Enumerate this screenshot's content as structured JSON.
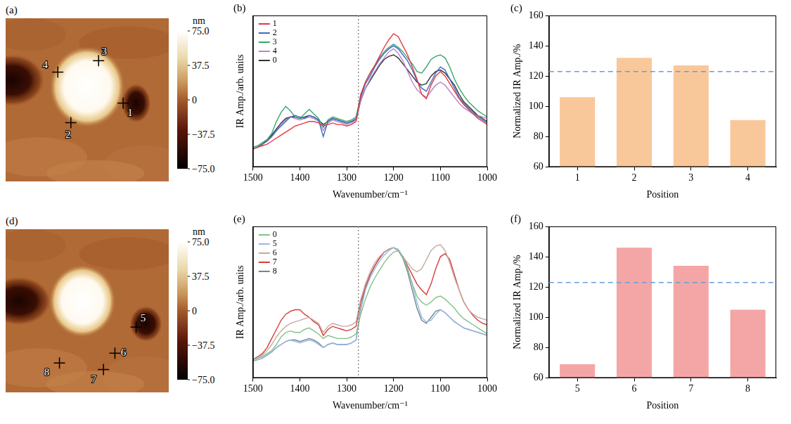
{
  "chart_data": [
    {
      "type": "line",
      "panel": "(b)",
      "xlabel": "Wavenumber/cm⁻¹",
      "ylabel": "IR Amp./arb. units",
      "x": [
        1500,
        1490,
        1480,
        1470,
        1460,
        1450,
        1440,
        1430,
        1420,
        1410,
        1400,
        1390,
        1380,
        1370,
        1360,
        1350,
        1340,
        1330,
        1320,
        1310,
        1300,
        1290,
        1280,
        1270,
        1260,
        1250,
        1240,
        1230,
        1220,
        1210,
        1200,
        1190,
        1180,
        1170,
        1160,
        1150,
        1140,
        1130,
        1120,
        1110,
        1100,
        1090,
        1080,
        1070,
        1060,
        1050,
        1040,
        1030,
        1020,
        1010,
        1000
      ],
      "xlim": [
        1500,
        1000
      ],
      "xticks": [
        1500,
        1400,
        1300,
        1200,
        1100,
        1000
      ],
      "ylim": [
        0,
        1
      ],
      "tick_labels": "x",
      "grid": false,
      "legend": "upper left",
      "reference_line": 1275,
      "series": [
        {
          "name": "1",
          "color": "#e8383d",
          "values": [
            0.12,
            0.13,
            0.14,
            0.15,
            0.17,
            0.19,
            0.21,
            0.23,
            0.25,
            0.27,
            0.28,
            0.29,
            0.3,
            0.3,
            0.29,
            0.27,
            0.28,
            0.29,
            0.28,
            0.28,
            0.27,
            0.28,
            0.3,
            0.48,
            0.56,
            0.62,
            0.67,
            0.73,
            0.79,
            0.84,
            0.88,
            0.86,
            0.8,
            0.74,
            0.66,
            0.58,
            0.48,
            0.45,
            0.54,
            0.6,
            0.63,
            0.6,
            0.55,
            0.5,
            0.45,
            0.41,
            0.38,
            0.35,
            0.32,
            0.3,
            0.28
          ]
        },
        {
          "name": "2",
          "color": "#3d6cc4",
          "values": [
            0.12,
            0.13,
            0.15,
            0.17,
            0.2,
            0.24,
            0.27,
            0.3,
            0.33,
            0.34,
            0.33,
            0.32,
            0.34,
            0.33,
            0.31,
            0.2,
            0.3,
            0.32,
            0.31,
            0.3,
            0.29,
            0.3,
            0.32,
            0.46,
            0.55,
            0.6,
            0.66,
            0.71,
            0.75,
            0.78,
            0.8,
            0.78,
            0.74,
            0.7,
            0.64,
            0.57,
            0.52,
            0.5,
            0.56,
            0.62,
            0.66,
            0.64,
            0.58,
            0.52,
            0.46,
            0.42,
            0.39,
            0.36,
            0.33,
            0.31,
            0.29
          ]
        },
        {
          "name": "3",
          "color": "#3aa66a",
          "values": [
            0.13,
            0.14,
            0.16,
            0.18,
            0.22,
            0.3,
            0.36,
            0.4,
            0.37,
            0.33,
            0.32,
            0.35,
            0.38,
            0.35,
            0.32,
            0.26,
            0.31,
            0.33,
            0.32,
            0.31,
            0.3,
            0.31,
            0.33,
            0.47,
            0.56,
            0.62,
            0.67,
            0.72,
            0.76,
            0.79,
            0.81,
            0.79,
            0.76,
            0.72,
            0.68,
            0.63,
            0.62,
            0.66,
            0.71,
            0.73,
            0.74,
            0.72,
            0.66,
            0.58,
            0.52,
            0.47,
            0.43,
            0.4,
            0.37,
            0.35,
            0.33
          ]
        },
        {
          "name": "4",
          "color": "#b884c8",
          "values": [
            0.12,
            0.13,
            0.15,
            0.17,
            0.2,
            0.24,
            0.28,
            0.31,
            0.33,
            0.32,
            0.31,
            0.32,
            0.33,
            0.32,
            0.3,
            0.24,
            0.29,
            0.31,
            0.3,
            0.29,
            0.28,
            0.29,
            0.31,
            0.44,
            0.52,
            0.58,
            0.63,
            0.68,
            0.72,
            0.76,
            0.78,
            0.75,
            0.7,
            0.63,
            0.56,
            0.51,
            0.48,
            0.46,
            0.5,
            0.54,
            0.56,
            0.54,
            0.5,
            0.46,
            0.42,
            0.39,
            0.37,
            0.35,
            0.34,
            0.33,
            0.32
          ]
        },
        {
          "name": "0",
          "color": "#333333",
          "values": [
            0.12,
            0.13,
            0.15,
            0.18,
            0.21,
            0.25,
            0.29,
            0.32,
            0.33,
            0.33,
            0.32,
            0.33,
            0.34,
            0.33,
            0.31,
            0.28,
            0.3,
            0.32,
            0.31,
            0.3,
            0.29,
            0.3,
            0.31,
            0.44,
            0.52,
            0.57,
            0.62,
            0.67,
            0.71,
            0.73,
            0.74,
            0.72,
            0.68,
            0.64,
            0.6,
            0.56,
            0.54,
            0.55,
            0.6,
            0.63,
            0.64,
            0.62,
            0.58,
            0.54,
            0.48,
            0.43,
            0.4,
            0.37,
            0.34,
            0.32,
            0.3
          ]
        }
      ]
    },
    {
      "type": "bar",
      "panel": "(c)",
      "xlabel": "Position",
      "ylabel": "Normalized IR Amp./%",
      "categories": [
        "1",
        "2",
        "3",
        "4"
      ],
      "values": [
        106,
        132,
        127,
        91
      ],
      "color": "#f9c89a",
      "ylim": [
        60,
        160
      ],
      "yticks": [
        60,
        80,
        100,
        120,
        140,
        160
      ],
      "grid": false,
      "reference_line": 123
    },
    {
      "type": "line",
      "panel": "(e)",
      "xlabel": "Wavenumber/cm⁻¹",
      "ylabel": "IR Amp./arb. units",
      "x": [
        1500,
        1490,
        1480,
        1470,
        1460,
        1450,
        1440,
        1430,
        1420,
        1410,
        1400,
        1390,
        1380,
        1370,
        1360,
        1350,
        1340,
        1330,
        1320,
        1310,
        1300,
        1290,
        1280,
        1270,
        1260,
        1250,
        1240,
        1230,
        1220,
        1210,
        1200,
        1190,
        1180,
        1170,
        1160,
        1150,
        1140,
        1130,
        1120,
        1110,
        1100,
        1090,
        1080,
        1070,
        1060,
        1050,
        1040,
        1030,
        1020,
        1010,
        1000
      ],
      "xlim": [
        1500,
        1000
      ],
      "xticks": [
        1500,
        1400,
        1300,
        1200,
        1100,
        1000
      ],
      "ylim": [
        0,
        1
      ],
      "tick_labels": "x",
      "grid": false,
      "legend": "upper left",
      "reference_line": 1275,
      "series": [
        {
          "name": "0",
          "color": "#86c08a",
          "values": [
            0.12,
            0.13,
            0.14,
            0.16,
            0.18,
            0.22,
            0.27,
            0.3,
            0.31,
            0.3,
            0.3,
            0.32,
            0.33,
            0.31,
            0.29,
            0.26,
            0.28,
            0.27,
            0.26,
            0.26,
            0.26,
            0.27,
            0.29,
            0.42,
            0.52,
            0.6,
            0.66,
            0.71,
            0.76,
            0.8,
            0.83,
            0.84,
            0.8,
            0.72,
            0.62,
            0.54,
            0.5,
            0.48,
            0.5,
            0.53,
            0.54,
            0.52,
            0.49,
            0.46,
            0.42,
            0.39,
            0.37,
            0.35,
            0.33,
            0.31,
            0.29
          ]
        },
        {
          "name": "5",
          "color": "#9ab8e0",
          "values": [
            0.11,
            0.12,
            0.13,
            0.15,
            0.17,
            0.2,
            0.22,
            0.24,
            0.25,
            0.24,
            0.23,
            0.24,
            0.25,
            0.24,
            0.22,
            0.2,
            0.22,
            0.23,
            0.22,
            0.22,
            0.22,
            0.23,
            0.25,
            0.45,
            0.58,
            0.66,
            0.72,
            0.77,
            0.81,
            0.84,
            0.86,
            0.85,
            0.8,
            0.72,
            0.62,
            0.5,
            0.4,
            0.37,
            0.38,
            0.42,
            0.45,
            0.43,
            0.4,
            0.37,
            0.35,
            0.33,
            0.32,
            0.31,
            0.3,
            0.29,
            0.28
          ]
        },
        {
          "name": "6",
          "color": "#c4aca0",
          "values": [
            0.12,
            0.13,
            0.15,
            0.18,
            0.22,
            0.27,
            0.31,
            0.34,
            0.36,
            0.37,
            0.38,
            0.39,
            0.4,
            0.38,
            0.36,
            0.3,
            0.34,
            0.36,
            0.35,
            0.34,
            0.34,
            0.35,
            0.37,
            0.52,
            0.62,
            0.7,
            0.76,
            0.8,
            0.83,
            0.85,
            0.86,
            0.84,
            0.8,
            0.76,
            0.72,
            0.7,
            0.72,
            0.78,
            0.84,
            0.87,
            0.88,
            0.84,
            0.76,
            0.66,
            0.58,
            0.5,
            0.45,
            0.42,
            0.4,
            0.39,
            0.38
          ]
        },
        {
          "name": "7",
          "color": "#d83a3a",
          "values": [
            0.12,
            0.14,
            0.16,
            0.2,
            0.26,
            0.32,
            0.38,
            0.42,
            0.44,
            0.45,
            0.45,
            0.42,
            0.4,
            0.37,
            0.35,
            0.28,
            0.32,
            0.34,
            0.33,
            0.32,
            0.31,
            0.32,
            0.34,
            0.5,
            0.6,
            0.68,
            0.74,
            0.79,
            0.83,
            0.85,
            0.86,
            0.84,
            0.8,
            0.74,
            0.68,
            0.62,
            0.58,
            0.55,
            0.62,
            0.72,
            0.8,
            0.82,
            0.78,
            0.68,
            0.58,
            0.5,
            0.45,
            0.41,
            0.38,
            0.36,
            0.35
          ]
        },
        {
          "name": "8",
          "color": "#6c8694",
          "values": [
            0.11,
            0.12,
            0.13,
            0.15,
            0.17,
            0.2,
            0.22,
            0.24,
            0.25,
            0.25,
            0.24,
            0.25,
            0.26,
            0.25,
            0.23,
            0.2,
            0.22,
            0.23,
            0.22,
            0.22,
            0.22,
            0.23,
            0.25,
            0.46,
            0.6,
            0.68,
            0.74,
            0.79,
            0.83,
            0.85,
            0.86,
            0.84,
            0.79,
            0.7,
            0.58,
            0.46,
            0.38,
            0.36,
            0.4,
            0.44,
            0.45,
            0.43,
            0.4,
            0.37,
            0.35,
            0.33,
            0.32,
            0.31,
            0.3,
            0.29,
            0.28
          ]
        }
      ]
    },
    {
      "type": "bar",
      "panel": "(f)",
      "xlabel": "Position",
      "ylabel": "Normalized IR Amp./%",
      "categories": [
        "5",
        "6",
        "7",
        "8"
      ],
      "values": [
        69,
        146,
        134,
        105
      ],
      "color": "#f4a6a6",
      "ylim": [
        60,
        160
      ],
      "yticks": [
        60,
        80,
        100,
        120,
        140,
        160
      ],
      "grid": false,
      "reference_line": 123
    }
  ],
  "images": [
    {
      "type": "image",
      "panel": "(a)",
      "colorbar": {
        "title": "nm",
        "range": [
          -75,
          75
        ],
        "ticks": [
          {
            "value": 75,
            "label": "75.0"
          },
          37.5,
          0,
          {
            "value": -37.5,
            "label": "−37.5"
          },
          {
            "value": -75,
            "label": "−75.0"
          }
        ]
      },
      "markers": [
        "1",
        "2",
        "3",
        "4"
      ]
    },
    {
      "type": "image",
      "panel": "(d)",
      "colorbar": {
        "title": "nm",
        "range": [
          -75,
          75
        ],
        "ticks": [
          {
            "value": 75,
            "label": "75.0"
          },
          37.5,
          0,
          {
            "value": -37.5,
            "label": "−37.5"
          },
          {
            "value": -75,
            "label": "−75.0"
          }
        ]
      },
      "markers": [
        "5",
        "6",
        "7",
        "8"
      ]
    }
  ]
}
